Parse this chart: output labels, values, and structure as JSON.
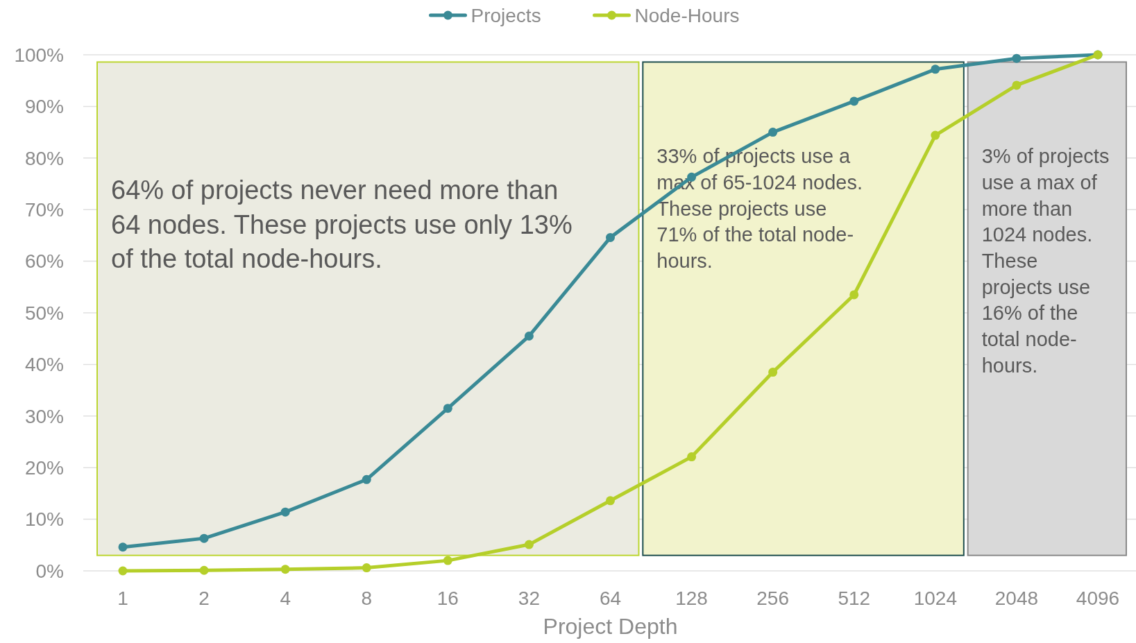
{
  "chart_data": {
    "type": "line",
    "xlabel": "Project Depth",
    "categories": [
      "1",
      "2",
      "4",
      "8",
      "16",
      "32",
      "64",
      "128",
      "256",
      "512",
      "1024",
      "2048",
      "4096"
    ],
    "series": [
      {
        "name": "Projects",
        "color": "#3a8a96",
        "values": [
          4.6,
          6.3,
          11.4,
          17.7,
          31.5,
          45.5,
          64.6,
          76.3,
          85.0,
          91.0,
          97.2,
          99.3,
          100
        ]
      },
      {
        "name": "Node-Hours",
        "color": "#b5cf2a",
        "values": [
          0,
          0.1,
          0.3,
          0.6,
          2.0,
          5.1,
          13.6,
          22.1,
          38.5,
          53.5,
          84.4,
          94.1,
          100
        ]
      }
    ],
    "ylim": [
      0,
      100
    ],
    "yticks": [
      {
        "value": 0,
        "label": "0%"
      },
      {
        "value": 10,
        "label": "10%"
      },
      {
        "value": 20,
        "label": "20%"
      },
      {
        "value": 30,
        "label": "30%"
      },
      {
        "value": 40,
        "label": "40%"
      },
      {
        "value": 50,
        "label": "50%"
      },
      {
        "value": 60,
        "label": "60%"
      },
      {
        "value": 70,
        "label": "70%"
      },
      {
        "value": 80,
        "label": "80%"
      },
      {
        "value": 90,
        "label": "90%"
      },
      {
        "value": 100,
        "label": "100%"
      }
    ],
    "grid": "y",
    "legend": "top",
    "marker": "circle",
    "line_style": "solid",
    "bands": [
      {
        "axis": "x",
        "from": "1",
        "to": "64",
        "color": "#ebebe1",
        "label": "64% of projects never need more than 64 nodes. These projects use only 13% of the total node-hours."
      },
      {
        "axis": "x",
        "from": "128",
        "to": "1024",
        "color": "#f2f3cc",
        "label": "33% of projects use a max of 65-1024 nodes. These projects use 71% of the total node-hours."
      },
      {
        "axis": "x",
        "from": "2048",
        "to": "4096",
        "color": "#d9d9d9",
        "label": "3% of projects use a max of more than 1024 nodes. These projects use 16% of the total node-hours."
      }
    ]
  }
}
